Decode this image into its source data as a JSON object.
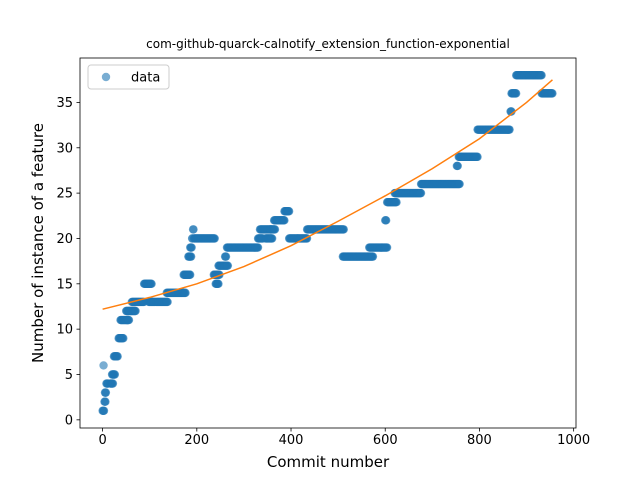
{
  "chart_data": {
    "type": "scatter",
    "title": "com-github-quarck-calnotify_extension_function-exponential",
    "xlabel": "Commit number",
    "ylabel": "Number of instance of a feature",
    "xlim": [
      -48,
      1005
    ],
    "ylim": [
      -0.9,
      39.9
    ],
    "xticks": [
      0,
      200,
      400,
      600,
      800,
      1000
    ],
    "yticks": [
      0,
      5,
      10,
      15,
      20,
      25,
      30,
      35
    ],
    "grid": false,
    "legend": {
      "position": "top-left",
      "entries": [
        "data"
      ]
    },
    "colors": {
      "data": "#1f77b4",
      "fit": "#ff7f0e"
    },
    "series": [
      {
        "name": "data",
        "kind": "scatter",
        "runs": [
          [
            0,
            3,
            1
          ],
          [
            2,
            2,
            6
          ],
          [
            4,
            6,
            2
          ],
          [
            5,
            7,
            3
          ],
          [
            8,
            12,
            4
          ],
          [
            16,
            22,
            4
          ],
          [
            20,
            26,
            5
          ],
          [
            24,
            32,
            7
          ],
          [
            34,
            44,
            9
          ],
          [
            38,
            56,
            11
          ],
          [
            50,
            70,
            12
          ],
          [
            62,
            88,
            13
          ],
          [
            88,
            104,
            15
          ],
          [
            98,
            112,
            13
          ],
          [
            114,
            138,
            13
          ],
          [
            136,
            176,
            14
          ],
          [
            172,
            186,
            16
          ],
          [
            182,
            188,
            18
          ],
          [
            186,
            189,
            19
          ],
          [
            190,
            191,
            20
          ],
          [
            192,
            193,
            21
          ],
          [
            194,
            238,
            20
          ],
          [
            236,
            248,
            16
          ],
          [
            240,
            246,
            15
          ],
          [
            246,
            266,
            17
          ],
          [
            260,
            262,
            18
          ],
          [
            264,
            330,
            19
          ],
          [
            330,
            340,
            20
          ],
          [
            334,
            358,
            21
          ],
          [
            346,
            360,
            20
          ],
          [
            356,
            366,
            21
          ],
          [
            364,
            386,
            22
          ],
          [
            386,
            396,
            23
          ],
          [
            396,
            414,
            20
          ],
          [
            414,
            434,
            20
          ],
          [
            434,
            512,
            21
          ],
          [
            510,
            574,
            18
          ],
          [
            566,
            604,
            19
          ],
          [
            600,
            602,
            22
          ],
          [
            604,
            624,
            24
          ],
          [
            620,
            676,
            25
          ],
          [
            676,
            758,
            26
          ],
          [
            752,
            754,
            28
          ],
          [
            756,
            796,
            29
          ],
          [
            796,
            864,
            32
          ],
          [
            866,
            868,
            34
          ],
          [
            868,
            878,
            36
          ],
          [
            878,
            932,
            38
          ],
          [
            932,
            955,
            36
          ]
        ]
      },
      {
        "name": "",
        "kind": "line",
        "x": [
          0,
          100,
          200,
          300,
          400,
          500,
          600,
          700,
          800,
          900,
          955
        ],
        "y": [
          12.2,
          13.5,
          15.0,
          16.9,
          19.2,
          21.9,
          24.7,
          27.7,
          31.0,
          35.0,
          37.5
        ]
      }
    ]
  }
}
